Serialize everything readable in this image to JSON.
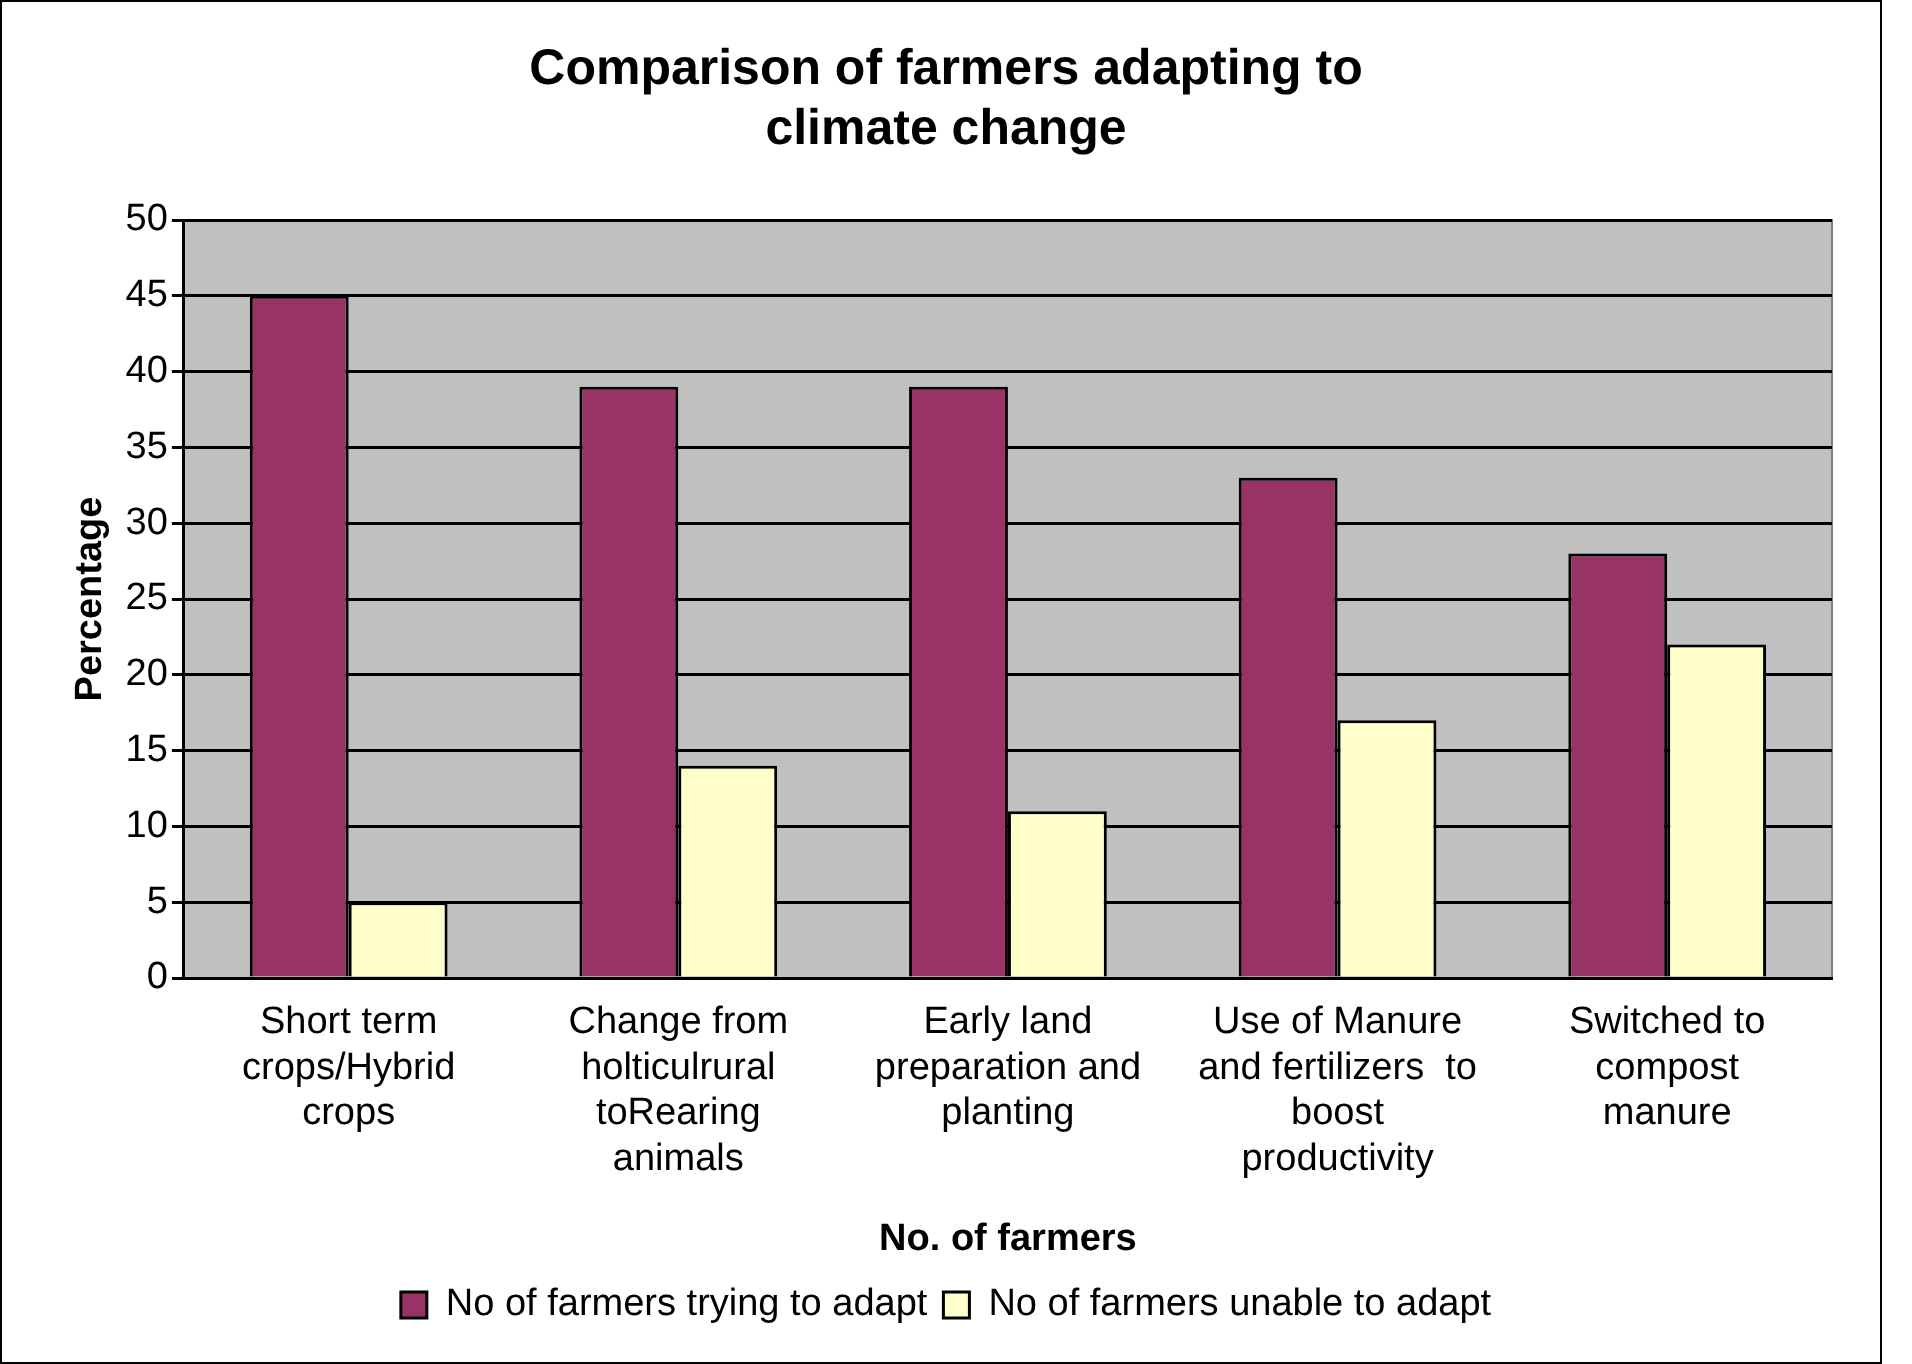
{
  "chart_data": {
    "type": "bar",
    "title": "Comparison of farmers adapting to climate change",
    "xlabel": "No. of farmers",
    "ylabel": "Percentage",
    "categories": [
      "Short term crops/Hybrid crops",
      "Change from holticulrural toRearing animals",
      "Early land preparation and planting",
      "Use of Manure and fertilizers  to boost productivity",
      "Switched to compost manure"
    ],
    "series": [
      {
        "name": "No of farmers trying to adapt",
        "color": "#993366",
        "values": [
          45,
          39,
          39,
          33,
          28
        ]
      },
      {
        "name": "No of farmers unable to adapt",
        "color": "#ffffcc",
        "values": [
          5,
          14,
          11,
          17,
          22
        ]
      }
    ],
    "ylim": [
      0,
      50
    ],
    "yticks": [
      0,
      5,
      10,
      15,
      20,
      25,
      30,
      35,
      40,
      45,
      50
    ],
    "grid": "y",
    "legend": "bottom"
  }
}
